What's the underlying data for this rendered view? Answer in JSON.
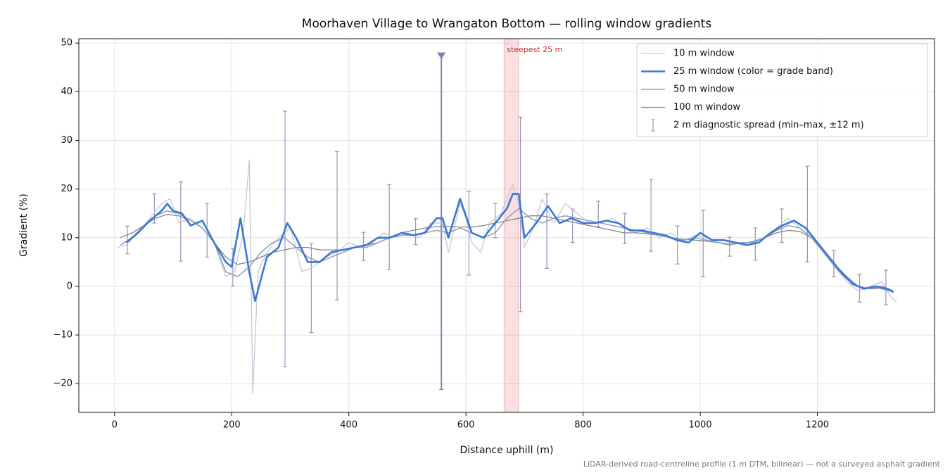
{
  "chart_data": {
    "type": "line",
    "title": "Moorhaven Village to Wrangaton Bottom — rolling window gradients",
    "xlabel": "Distance uphill (m)",
    "ylabel": "Gradient (%)",
    "footnote": "LiDAR-derived road-centreline profile (1 m DTM, bilinear) — not a surveyed asphalt gradient",
    "xlim": [
      -61,
      1400
    ],
    "ylim": [
      -25.9,
      50.9
    ],
    "xticks": [
      0,
      200,
      400,
      600,
      800,
      1000,
      1200
    ],
    "yticks": [
      {
        "value": -20,
        "label": "−20"
      },
      {
        "value": -10,
        "label": "−10"
      },
      0,
      10,
      20,
      30,
      40,
      50
    ],
    "grid": true,
    "legend": "upper right",
    "series": [
      {
        "name": "10 m window",
        "color": "#c3cad4",
        "linewidth": 1.3,
        "x": [
          5,
          20,
          40,
          60,
          80,
          95,
          110,
          130,
          150,
          170,
          190,
          205,
          220,
          230,
          236,
          245,
          260,
          280,
          300,
          320,
          340,
          360,
          380,
          400,
          420,
          440,
          460,
          480,
          500,
          520,
          540,
          560,
          570,
          590,
          600,
          610,
          625,
          640,
          660,
          680,
          690,
          700,
          715,
          730,
          750,
          770,
          790,
          810,
          830,
          850,
          870,
          890,
          910,
          930,
          950,
          970,
          990,
          1010,
          1030,
          1050,
          1070,
          1090,
          1110,
          1130,
          1150,
          1170,
          1190,
          1210,
          1230,
          1250,
          1270,
          1290,
          1310,
          1325,
          1335
        ],
        "values": [
          8,
          8.5,
          11,
          14,
          17,
          18,
          13,
          14,
          12,
          9,
          2,
          3,
          11,
          26,
          -22,
          3,
          7,
          10,
          12,
          3,
          4,
          6,
          7,
          9,
          8,
          9,
          11,
          10,
          11,
          10,
          13,
          13,
          7,
          17,
          14,
          9,
          7,
          13,
          15,
          21,
          17,
          8,
          12,
          18,
          13,
          17,
          15,
          13,
          13,
          14,
          12,
          11,
          12,
          10,
          11,
          9,
          10.5,
          10,
          9,
          8.5,
          9,
          9,
          10,
          12,
          14,
          12,
          10,
          7,
          4,
          1,
          -1,
          0,
          1,
          -2,
          -3.2
        ]
      },
      {
        "name": "25 m window (color = grade band)",
        "color": "#3a78d8",
        "linewidth": 2.6,
        "x": [
          20,
          40,
          60,
          80,
          90,
          100,
          115,
          130,
          150,
          170,
          190,
          200,
          215,
          230,
          240,
          260,
          280,
          295,
          310,
          330,
          350,
          370,
          390,
          410,
          430,
          450,
          470,
          490,
          510,
          530,
          550,
          560,
          570,
          590,
          610,
          630,
          650,
          670,
          680,
          690,
          700,
          720,
          740,
          760,
          780,
          800,
          820,
          840,
          860,
          880,
          900,
          920,
          940,
          960,
          980,
          1000,
          1020,
          1040,
          1060,
          1080,
          1100,
          1120,
          1140,
          1160,
          1180,
          1200,
          1220,
          1240,
          1260,
          1280,
          1300,
          1320,
          1330
        ],
        "values": [
          9,
          11,
          13.5,
          15.5,
          17,
          15.5,
          15,
          12.5,
          13.5,
          9,
          5,
          4,
          14,
          3,
          -3,
          6,
          8,
          13,
          10,
          5,
          5,
          7,
          7.5,
          8,
          8.5,
          10,
          10,
          11,
          10.5,
          11,
          14,
          14,
          10,
          18,
          11,
          10,
          13,
          16,
          19,
          19,
          10,
          13,
          16.5,
          13,
          14,
          13,
          13,
          13.5,
          13,
          11.5,
          11.5,
          11,
          10.5,
          9.5,
          9,
          11,
          9.5,
          9.5,
          9,
          8.5,
          9,
          11,
          12.5,
          13.5,
          12,
          9,
          6,
          3,
          0.5,
          -0.5,
          0,
          -0.5,
          -1.2
        ]
      },
      {
        "name": "50 m window",
        "color": "#98a2b5",
        "linewidth": 1.6,
        "x": [
          10,
          30,
          50,
          70,
          90,
          110,
          130,
          150,
          170,
          190,
          210,
          230,
          250,
          270,
          290,
          310,
          330,
          350,
          370,
          390,
          410,
          430,
          450,
          470,
          490,
          510,
          530,
          550,
          570,
          590,
          610,
          630,
          650,
          670,
          690,
          710,
          730,
          750,
          770,
          790,
          810,
          830,
          850,
          870,
          890,
          910,
          930,
          950,
          970,
          990,
          1010,
          1030,
          1050,
          1070,
          1090,
          1110,
          1130,
          1150,
          1170,
          1190,
          1210,
          1230,
          1250,
          1270,
          1290,
          1310,
          1330
        ],
        "values": [
          8.5,
          10,
          12.5,
          14.5,
          15.5,
          15,
          13.5,
          12,
          9,
          3,
          2,
          4,
          7,
          9,
          10,
          8,
          6,
          5,
          6,
          7,
          8,
          8,
          9,
          10,
          10.5,
          10.5,
          11,
          11.5,
          11,
          12,
          11,
          10,
          11,
          14,
          16,
          14,
          13,
          14,
          14.5,
          14,
          13.5,
          13,
          12.5,
          12,
          11.5,
          11,
          10.5,
          10,
          9.5,
          10,
          9.5,
          9,
          8.5,
          9,
          9,
          10,
          11.5,
          12.5,
          12,
          10,
          7,
          4,
          1.5,
          0,
          -0.5,
          0,
          -1
        ]
      },
      {
        "name": "100 m window",
        "color": "#7f8590",
        "linewidth": 1.3,
        "x": [
          10,
          30,
          50,
          70,
          90,
          110,
          130,
          150,
          170,
          190,
          210,
          230,
          250,
          270,
          290,
          310,
          330,
          350,
          370,
          390,
          410,
          430,
          450,
          470,
          490,
          510,
          530,
          550,
          570,
          590,
          610,
          630,
          650,
          670,
          690,
          710,
          730,
          750,
          770,
          790,
          810,
          830,
          850,
          870,
          890,
          910,
          930,
          950,
          970,
          990,
          1010,
          1030,
          1050,
          1070,
          1090,
          1110,
          1130,
          1150,
          1170,
          1190,
          1210,
          1230,
          1250,
          1270,
          1290,
          1310,
          1325
        ],
        "values": [
          10,
          11,
          12.5,
          14,
          14.8,
          14.5,
          13.5,
          12,
          9,
          6,
          4.5,
          5,
          6,
          7,
          7.5,
          8,
          8,
          7.5,
          7.5,
          7.5,
          8,
          8.5,
          9,
          10,
          11,
          11.5,
          12,
          12.3,
          12.3,
          12.2,
          12.2,
          12.5,
          13,
          13.5,
          14,
          14.5,
          14.5,
          14,
          13.5,
          13,
          12.5,
          12,
          11.5,
          11,
          11,
          10.8,
          10.5,
          10,
          9.7,
          9.5,
          9.3,
          9,
          8.7,
          8.8,
          9.2,
          10,
          11,
          11.5,
          11.3,
          10,
          7.5,
          4.5,
          2,
          0,
          -0.5,
          -0.5,
          -1
        ]
      }
    ],
    "errorbars": {
      "name": "2 m diagnostic spread (min–max, ±12 m)",
      "color": "#9a94bc",
      "x": [
        22,
        68,
        113,
        158,
        202,
        291,
        336,
        380,
        425,
        469,
        514,
        558,
        605,
        650,
        693,
        738,
        782,
        826,
        871,
        916,
        961,
        1005,
        1050,
        1094,
        1139,
        1183,
        1228,
        1272,
        1317
      ],
      "low": [
        6.7,
        13,
        5.2,
        6,
        0,
        -16.5,
        -9.5,
        -2.8,
        5.3,
        3.5,
        8.6,
        -21.2,
        2.3,
        10,
        -5.2,
        3.7,
        9,
        12.3,
        8.8,
        7.2,
        4.6,
        2,
        6.2,
        5.4,
        9,
        5,
        2,
        -3.2,
        -3.8
      ],
      "high": [
        12.4,
        19,
        21.5,
        17,
        7.8,
        36,
        8.8,
        27.7,
        11.1,
        20.9,
        13.9,
        47.5,
        19.5,
        17,
        34.8,
        19,
        15.9,
        17.5,
        15,
        22,
        12.4,
        15.6,
        10.1,
        12,
        15.9,
        24.7,
        7.4,
        2.5,
        3.3
      ]
    },
    "highlight": [
      665,
      690
    ],
    "highlight_label": "steepest 25 m"
  }
}
